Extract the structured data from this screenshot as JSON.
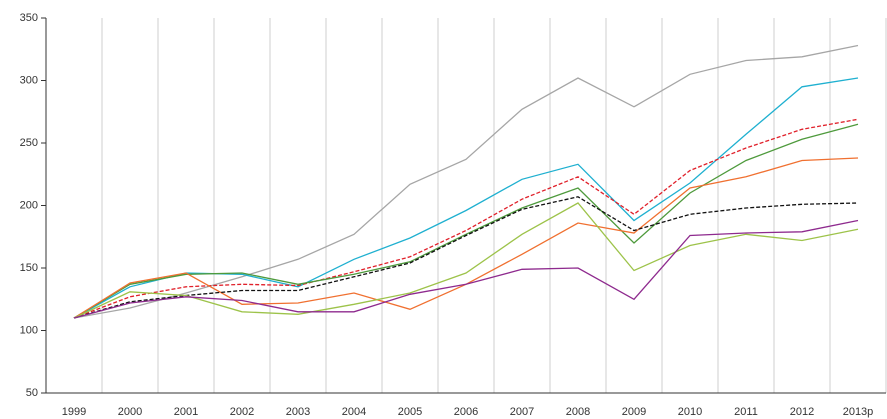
{
  "chart_data": {
    "type": "line",
    "categories": [
      "1999",
      "2000",
      "2001",
      "2002",
      "2003",
      "2004",
      "2005",
      "2006",
      "2007",
      "2008",
      "2009",
      "2010",
      "2011",
      "2012",
      "2013p"
    ],
    "series": [
      {
        "color": "#a6a6a6",
        "dashed": false,
        "values": [
          110,
          118,
          130,
          143,
          157,
          177,
          217,
          237,
          277,
          302,
          279,
          305,
          316,
          319,
          328
        ]
      },
      {
        "color": "#1fb0d0",
        "dashed": false,
        "values": [
          110,
          135,
          146,
          145,
          135,
          157,
          174,
          196,
          221,
          233,
          188,
          218,
          257,
          295,
          302
        ]
      },
      {
        "color": "#e0202a",
        "dashed": true,
        "values": [
          110,
          127,
          135,
          137,
          136,
          147,
          159,
          180,
          205,
          223,
          193,
          228,
          246,
          261,
          269
        ]
      },
      {
        "color": "#4e9a3c",
        "dashed": false,
        "values": [
          110,
          137,
          145,
          146,
          137,
          145,
          155,
          177,
          198,
          214,
          170,
          210,
          236,
          253,
          265
        ]
      },
      {
        "color": "#f07030",
        "dashed": false,
        "values": [
          110,
          138,
          146,
          121,
          122,
          130,
          117,
          137,
          161,
          186,
          178,
          214,
          223,
          236,
          238
        ]
      },
      {
        "color": "#111111",
        "dashed": true,
        "values": [
          110,
          123,
          128,
          132,
          132,
          143,
          154,
          176,
          197,
          207,
          180,
          193,
          198,
          201,
          202
        ]
      },
      {
        "color": "#9dc34a",
        "dashed": false,
        "values": [
          110,
          131,
          128,
          115,
          113,
          121,
          130,
          146,
          177,
          202,
          148,
          168,
          177,
          172,
          181
        ]
      },
      {
        "color": "#8e2a8e",
        "dashed": false,
        "values": [
          110,
          122,
          127,
          124,
          115,
          115,
          129,
          137,
          149,
          150,
          125,
          176,
          178,
          179,
          188
        ]
      }
    ],
    "ylim": [
      50,
      350
    ],
    "yticks": [
      50,
      100,
      150,
      200,
      250,
      300,
      350
    ],
    "grid": "vertical"
  }
}
